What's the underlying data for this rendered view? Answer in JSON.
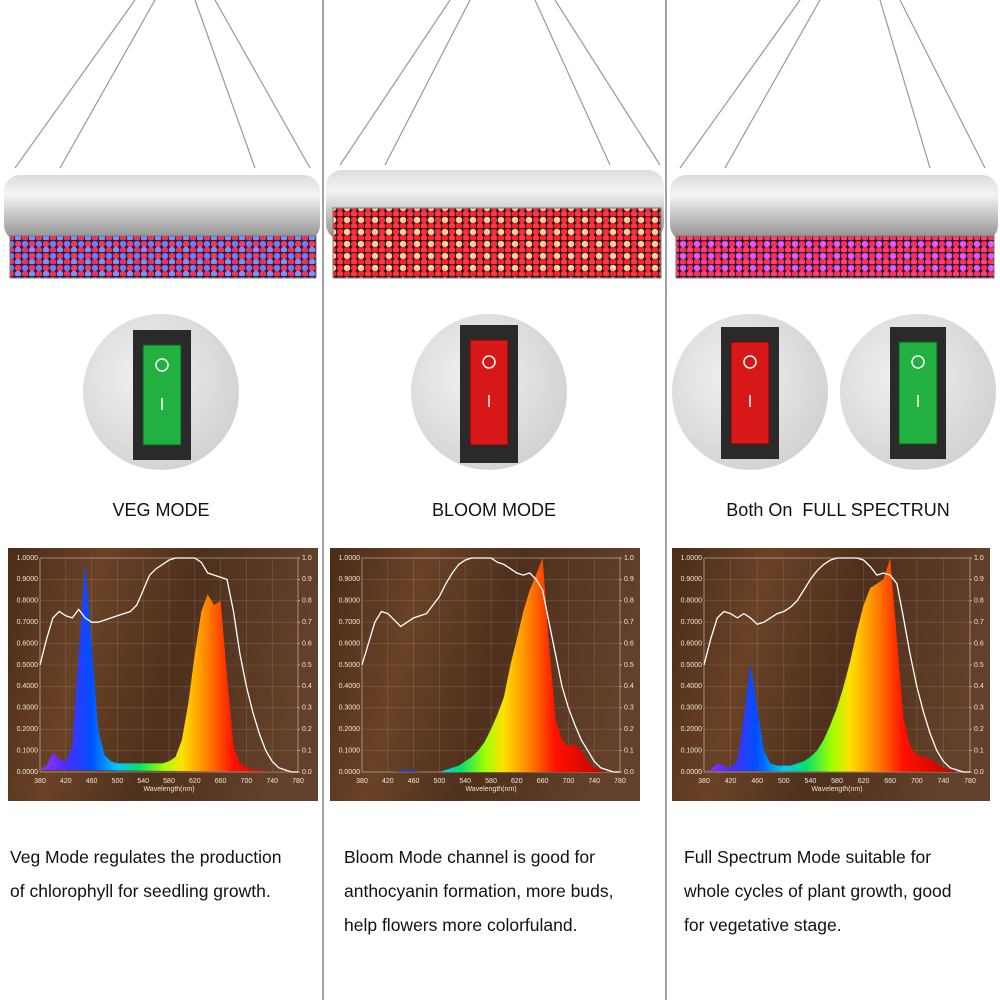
{
  "panels": [
    {
      "mode": "VEG MODE",
      "description": [
        "Veg Mode regulates the production",
        "of chlorophyll for seedling growth."
      ]
    },
    {
      "mode": "BLOOM MODE",
      "description": [
        "Bloom Mode channel is good for",
        "anthocyanin formation, more buds,",
        "help flowers more colorfuland."
      ]
    },
    {
      "mode": "Both On  FULL SPECTRUN",
      "description": [
        "Full Spectrum Mode suitable for",
        "whole cycles of plant growth, good",
        "for vegetative stage."
      ]
    }
  ],
  "chart_data": [
    {
      "type": "area",
      "x_label": "Wavelength(nm)",
      "x": [
        380,
        390,
        400,
        410,
        420,
        430,
        440,
        450,
        460,
        470,
        480,
        490,
        500,
        510,
        520,
        530,
        540,
        550,
        560,
        570,
        580,
        590,
        600,
        610,
        620,
        630,
        640,
        650,
        660,
        670,
        680,
        690,
        700,
        710,
        720,
        730,
        740,
        750,
        760,
        770,
        780
      ],
      "xlim": [
        380,
        780
      ],
      "xticks": [
        380,
        420,
        460,
        500,
        540,
        580,
        620,
        660,
        700,
        740,
        780
      ],
      "ylim": [
        0,
        1
      ],
      "yticks": [
        {
          "value": 0,
          "label": "0.0000"
        },
        {
          "value": 0.1,
          "label": "0.1000"
        },
        {
          "value": 0.2,
          "label": "0.2000"
        },
        {
          "value": 0.3,
          "label": "0.3000"
        },
        {
          "value": 0.4,
          "label": "0.4000"
        },
        {
          "value": 0.5,
          "label": "0.5000"
        },
        {
          "value": 0.6,
          "label": "0.6000"
        },
        {
          "value": 0.7,
          "label": "0.7000"
        },
        {
          "value": 0.8,
          "label": "0.8000"
        },
        {
          "value": 0.9,
          "label": "0.9000"
        },
        {
          "value": 1,
          "label": "1.0000"
        }
      ],
      "y2lim": [
        0,
        1
      ],
      "y2ticks": [
        {
          "value": 0,
          "label": "0.0"
        },
        0.1,
        0.2,
        0.3,
        0.4,
        0.5,
        0.6,
        0.7,
        0.8,
        0.9,
        {
          "value": 1,
          "label": "1.0"
        }
      ],
      "series": [
        {
          "values": [
            0.01,
            0.03,
            0.09,
            0.06,
            0.05,
            0.12,
            0.55,
            0.98,
            0.6,
            0.2,
            0.08,
            0.05,
            0.04,
            0.04,
            0.04,
            0.04,
            0.04,
            0.04,
            0.04,
            0.04,
            0.05,
            0.07,
            0.15,
            0.32,
            0.55,
            0.75,
            0.83,
            0.78,
            0.8,
            0.45,
            0.12,
            0.04,
            0.02,
            0.01,
            0.01,
            0,
            0,
            0,
            0,
            0,
            0
          ]
        },
        {
          "color": "#ffffff",
          "axis": "y2",
          "values": [
            0.5,
            0.62,
            0.72,
            0.75,
            0.73,
            0.72,
            0.76,
            0.72,
            0.7,
            0.7,
            0.71,
            0.72,
            0.73,
            0.74,
            0.75,
            0.78,
            0.85,
            0.92,
            0.95,
            0.97,
            0.99,
            1,
            1,
            1,
            1,
            0.98,
            0.93,
            0.92,
            0.91,
            0.9,
            0.75,
            0.55,
            0.4,
            0.28,
            0.18,
            0.1,
            0.05,
            0.02,
            0.01,
            0,
            0
          ]
        }
      ]
    },
    {
      "type": "area",
      "x_label": "Wavelength(nm)",
      "x": [
        380,
        390,
        400,
        410,
        420,
        430,
        440,
        450,
        460,
        470,
        480,
        490,
        500,
        510,
        520,
        530,
        540,
        550,
        560,
        570,
        580,
        590,
        600,
        610,
        620,
        630,
        640,
        650,
        660,
        670,
        680,
        690,
        700,
        710,
        720,
        730,
        740,
        750,
        760,
        770,
        780
      ],
      "xlim": [
        380,
        780
      ],
      "xticks": [
        380,
        420,
        460,
        500,
        540,
        580,
        620,
        660,
        700,
        740,
        780
      ],
      "ylim": [
        0,
        1
      ],
      "yticks": [
        {
          "value": 0,
          "label": "0.0000"
        },
        {
          "value": 0.1,
          "label": "0.1000"
        },
        {
          "value": 0.2,
          "label": "0.2000"
        },
        {
          "value": 0.3,
          "label": "0.3000"
        },
        {
          "value": 0.4,
          "label": "0.4000"
        },
        {
          "value": 0.5,
          "label": "0.5000"
        },
        {
          "value": 0.6,
          "label": "0.6000"
        },
        {
          "value": 0.7,
          "label": "0.7000"
        },
        {
          "value": 0.8,
          "label": "0.8000"
        },
        {
          "value": 0.9,
          "label": "0.9000"
        },
        {
          "value": 1,
          "label": "1.0000"
        }
      ],
      "y2lim": [
        0,
        1
      ],
      "y2ticks": [
        {
          "value": 0,
          "label": "0.0"
        },
        0.1,
        0.2,
        0.3,
        0.4,
        0.5,
        0.6,
        0.7,
        0.8,
        0.9,
        {
          "value": 1,
          "label": "1.0"
        }
      ],
      "series": [
        {
          "values": [
            0,
            0,
            0,
            0,
            0,
            0,
            0.005,
            0.008,
            0.005,
            0,
            0,
            0,
            0,
            0.01,
            0.02,
            0.03,
            0.05,
            0.07,
            0.1,
            0.14,
            0.2,
            0.27,
            0.35,
            0.5,
            0.62,
            0.75,
            0.85,
            0.92,
            1,
            0.6,
            0.25,
            0.15,
            0.12,
            0.13,
            0.1,
            0.05,
            0.02,
            0.01,
            0,
            0,
            0
          ]
        },
        {
          "color": "#ffffff",
          "axis": "y2",
          "values": [
            0.5,
            0.6,
            0.7,
            0.75,
            0.74,
            0.71,
            0.68,
            0.7,
            0.72,
            0.73,
            0.74,
            0.78,
            0.82,
            0.88,
            0.93,
            0.97,
            0.99,
            1,
            1,
            1,
            1,
            0.98,
            0.97,
            0.95,
            0.93,
            0.92,
            0.93,
            0.9,
            0.85,
            0.7,
            0.55,
            0.4,
            0.3,
            0.22,
            0.15,
            0.1,
            0.05,
            0.02,
            0.01,
            0,
            0
          ]
        }
      ]
    },
    {
      "type": "area",
      "x_label": "Wavelength(nm)",
      "x": [
        380,
        390,
        400,
        410,
        420,
        430,
        440,
        450,
        460,
        470,
        480,
        490,
        500,
        510,
        520,
        530,
        540,
        550,
        560,
        570,
        580,
        590,
        600,
        610,
        620,
        630,
        640,
        650,
        660,
        670,
        680,
        690,
        700,
        710,
        720,
        730,
        740,
        750,
        760,
        770,
        780
      ],
      "xlim": [
        380,
        780
      ],
      "xticks": [
        380,
        420,
        460,
        500,
        540,
        580,
        620,
        660,
        700,
        740,
        780
      ],
      "ylim": [
        0,
        1
      ],
      "yticks": [
        {
          "value": 0,
          "label": "0.0000"
        },
        {
          "value": 0.1,
          "label": "0.1000"
        },
        {
          "value": 0.2,
          "label": "0.2000"
        },
        {
          "value": 0.3,
          "label": "0.3000"
        },
        {
          "value": 0.4,
          "label": "0.4000"
        },
        {
          "value": 0.5,
          "label": "0.5000"
        },
        {
          "value": 0.6,
          "label": "0.6000"
        },
        {
          "value": 0.7,
          "label": "0.7000"
        },
        {
          "value": 0.8,
          "label": "0.8000"
        },
        {
          "value": 0.9,
          "label": "0.9000"
        },
        {
          "value": 1,
          "label": "1.0000"
        }
      ],
      "y2lim": [
        0,
        1
      ],
      "y2ticks": [
        {
          "value": 0,
          "label": "0.0"
        },
        0.1,
        0.2,
        0.3,
        0.4,
        0.5,
        0.6,
        0.7,
        0.8,
        0.9,
        {
          "value": 1,
          "label": "1.0"
        }
      ],
      "series": [
        {
          "values": [
            0.005,
            0.01,
            0.04,
            0.03,
            0.02,
            0.05,
            0.25,
            0.51,
            0.3,
            0.1,
            0.04,
            0.03,
            0.03,
            0.03,
            0.04,
            0.05,
            0.07,
            0.1,
            0.15,
            0.22,
            0.3,
            0.4,
            0.52,
            0.66,
            0.78,
            0.86,
            0.88,
            0.9,
            1,
            0.62,
            0.25,
            0.12,
            0.08,
            0.07,
            0.06,
            0.04,
            0.02,
            0.01,
            0,
            0,
            0
          ]
        },
        {
          "color": "#ffffff",
          "axis": "y2",
          "values": [
            0.5,
            0.62,
            0.72,
            0.75,
            0.74,
            0.72,
            0.74,
            0.72,
            0.69,
            0.7,
            0.72,
            0.74,
            0.75,
            0.77,
            0.8,
            0.85,
            0.9,
            0.94,
            0.97,
            0.99,
            1,
            1,
            1,
            1,
            0.99,
            0.96,
            0.92,
            0.93,
            0.92,
            0.88,
            0.72,
            0.55,
            0.4,
            0.28,
            0.18,
            0.1,
            0.05,
            0.02,
            0.01,
            0,
            0
          ]
        }
      ]
    }
  ]
}
